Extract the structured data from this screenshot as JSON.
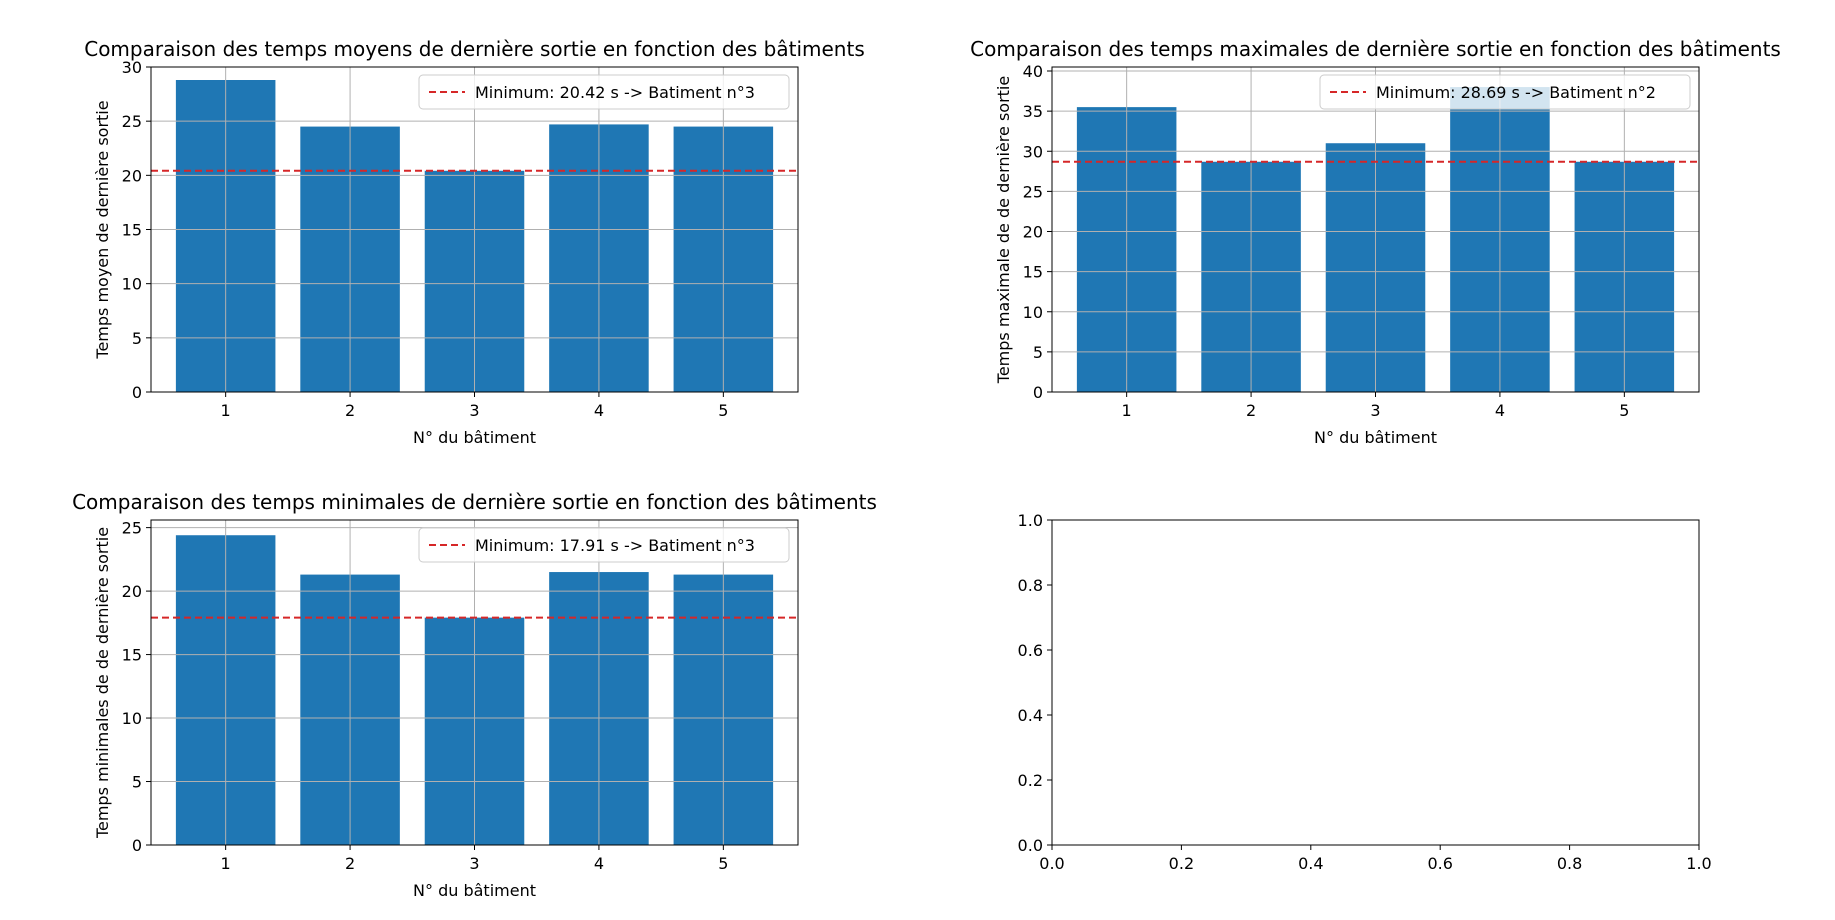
{
  "chart_data": [
    {
      "type": "bar",
      "title": "Comparaison des temps moyens de dernière sortie en fonction des bâtiments",
      "xlabel": "N° du bâtiment",
      "ylabel": "Temps moyen de dernière sortie",
      "categories": [
        "1",
        "2",
        "3",
        "4",
        "5"
      ],
      "values": [
        28.8,
        24.5,
        20.42,
        24.7,
        24.5
      ],
      "ylim": [
        0,
        30
      ],
      "yticks": [
        "0",
        "5",
        "10",
        "15",
        "20",
        "25",
        "30"
      ],
      "grid": true,
      "bar_color": "#1f77b4",
      "reference_line": {
        "value": 20.42,
        "color": "#d62728",
        "style": "dashed"
      },
      "legend": {
        "text": "Minimum: 20.42 s -> Batiment n°3",
        "placement": "top-right"
      }
    },
    {
      "type": "bar",
      "title": "Comparaison des temps maximales de dernière sortie en fonction des bâtiments",
      "xlabel": "N° du bâtiment",
      "ylabel": "Temps maximale de de dernière sortie",
      "categories": [
        "1",
        "2",
        "3",
        "4",
        "5"
      ],
      "values": [
        35.5,
        28.69,
        31.0,
        38.0,
        28.69
      ],
      "ylim": [
        0,
        40.5
      ],
      "yticks": [
        "0",
        "5",
        "10",
        "15",
        "20",
        "25",
        "30",
        "35",
        "40"
      ],
      "grid": true,
      "bar_color": "#1f77b4",
      "reference_line": {
        "value": 28.69,
        "color": "#d62728",
        "style": "dashed"
      },
      "legend": {
        "text": "Minimum: 28.69 s -> Batiment n°2",
        "placement": "top-right"
      }
    },
    {
      "type": "bar",
      "title": "Comparaison des temps minimales de dernière sortie en fonction des bâtiments",
      "xlabel": "N° du bâtiment",
      "ylabel": "Temps minimales de de dernière sortie",
      "categories": [
        "1",
        "2",
        "3",
        "4",
        "5"
      ],
      "values": [
        24.4,
        21.3,
        17.91,
        21.5,
        21.3
      ],
      "ylim": [
        0,
        25.6
      ],
      "yticks": [
        "0",
        "5",
        "10",
        "15",
        "20",
        "25"
      ],
      "grid": true,
      "bar_color": "#1f77b4",
      "reference_line": {
        "value": 17.91,
        "color": "#d62728",
        "style": "dashed"
      },
      "legend": {
        "text": "Minimum: 17.91 s -> Batiment n°3",
        "placement": "top-right"
      }
    },
    {
      "type": "empty",
      "xlim": [
        0,
        1
      ],
      "ylim": [
        0,
        1
      ],
      "xticks": [
        "0.0",
        "0.2",
        "0.4",
        "0.6",
        "0.8",
        "1.0"
      ],
      "yticks": [
        "0.0",
        "0.2",
        "0.4",
        "0.6",
        "0.8",
        "1.0"
      ],
      "grid": false
    }
  ]
}
